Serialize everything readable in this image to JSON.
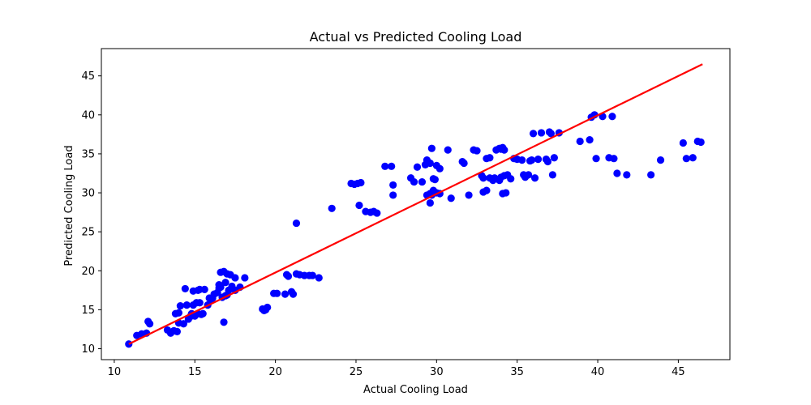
{
  "chart_data": {
    "type": "scatter",
    "title": "Actual vs Predicted Cooling Load",
    "xlabel": "Actual Cooling Load",
    "ylabel": "Predicted Cooling Load",
    "xlim": [
      9.2,
      48.2
    ],
    "ylim": [
      8.6,
      48.5
    ],
    "xticks": [
      10,
      15,
      20,
      25,
      30,
      35,
      40,
      45
    ],
    "yticks": [
      10,
      15,
      20,
      25,
      30,
      35,
      40,
      45
    ],
    "grid": false,
    "series": [
      {
        "type": "scatter",
        "color": "#0000ff",
        "points": [
          [
            10.9,
            10.6
          ],
          [
            11.4,
            11.7
          ],
          [
            11.7,
            11.9
          ],
          [
            12.0,
            12.0
          ],
          [
            12.1,
            13.5
          ],
          [
            12.2,
            13.2
          ],
          [
            13.3,
            12.4
          ],
          [
            13.5,
            12.0
          ],
          [
            13.7,
            12.3
          ],
          [
            13.9,
            12.2
          ],
          [
            13.8,
            14.5
          ],
          [
            14.0,
            14.6
          ],
          [
            14.0,
            13.3
          ],
          [
            14.1,
            15.5
          ],
          [
            14.3,
            13.2
          ],
          [
            14.4,
            17.7
          ],
          [
            14.5,
            15.6
          ],
          [
            14.6,
            13.8
          ],
          [
            14.7,
            14.1
          ],
          [
            14.8,
            14.5
          ],
          [
            15.0,
            14.2
          ],
          [
            14.9,
            15.6
          ],
          [
            15.1,
            15.9
          ],
          [
            15.3,
            15.9
          ],
          [
            15.2,
            14.5
          ],
          [
            15.4,
            14.4
          ],
          [
            15.5,
            14.5
          ],
          [
            14.9,
            17.4
          ],
          [
            15.2,
            17.5
          ],
          [
            15.3,
            17.6
          ],
          [
            15.6,
            17.6
          ],
          [
            15.8,
            15.6
          ],
          [
            15.9,
            16.5
          ],
          [
            16.0,
            16.2
          ],
          [
            16.1,
            16.5
          ],
          [
            16.2,
            17.0
          ],
          [
            16.4,
            17.2
          ],
          [
            16.5,
            17.8
          ],
          [
            16.5,
            18.2
          ],
          [
            16.6,
            17.9
          ],
          [
            16.7,
            16.6
          ],
          [
            16.9,
            16.8
          ],
          [
            17.0,
            16.9
          ],
          [
            17.1,
            17.5
          ],
          [
            17.3,
            18.0
          ],
          [
            17.5,
            17.5
          ],
          [
            17.8,
            17.9
          ],
          [
            16.6,
            19.8
          ],
          [
            16.8,
            19.9
          ],
          [
            17.0,
            19.6
          ],
          [
            17.2,
            19.5
          ],
          [
            17.5,
            19.1
          ],
          [
            18.1,
            19.1
          ],
          [
            16.8,
            13.4
          ],
          [
            16.9,
            18.5
          ],
          [
            19.2,
            15.1
          ],
          [
            19.3,
            14.9
          ],
          [
            19.4,
            15.0
          ],
          [
            19.5,
            15.3
          ],
          [
            19.9,
            17.1
          ],
          [
            20.1,
            17.1
          ],
          [
            20.6,
            17.0
          ],
          [
            20.7,
            19.5
          ],
          [
            20.8,
            19.3
          ],
          [
            21.0,
            17.3
          ],
          [
            21.1,
            17.0
          ],
          [
            21.3,
            19.6
          ],
          [
            21.5,
            19.5
          ],
          [
            21.8,
            19.4
          ],
          [
            22.1,
            19.4
          ],
          [
            22.3,
            19.4
          ],
          [
            22.7,
            19.1
          ],
          [
            21.3,
            26.1
          ],
          [
            23.5,
            28.0
          ],
          [
            24.7,
            31.2
          ],
          [
            24.9,
            31.1
          ],
          [
            25.1,
            31.2
          ],
          [
            25.3,
            31.3
          ],
          [
            25.2,
            28.4
          ],
          [
            25.6,
            27.6
          ],
          [
            25.9,
            27.5
          ],
          [
            26.1,
            27.6
          ],
          [
            26.3,
            27.4
          ],
          [
            26.8,
            33.4
          ],
          [
            27.2,
            33.4
          ],
          [
            27.3,
            31.0
          ],
          [
            27.3,
            29.7
          ],
          [
            28.4,
            31.9
          ],
          [
            28.6,
            31.4
          ],
          [
            28.8,
            33.3
          ],
          [
            29.1,
            31.4
          ],
          [
            29.3,
            33.6
          ],
          [
            29.4,
            34.2
          ],
          [
            29.6,
            33.8
          ],
          [
            29.4,
            29.7
          ],
          [
            29.6,
            29.9
          ],
          [
            29.7,
            29.7
          ],
          [
            29.8,
            30.3
          ],
          [
            30.0,
            30.0
          ],
          [
            30.2,
            29.9
          ],
          [
            29.6,
            28.7
          ],
          [
            29.8,
            31.8
          ],
          [
            29.9,
            31.7
          ],
          [
            29.7,
            35.7
          ],
          [
            30.0,
            33.5
          ],
          [
            30.2,
            33.1
          ],
          [
            30.7,
            35.5
          ],
          [
            30.9,
            29.3
          ],
          [
            31.6,
            34.0
          ],
          [
            31.7,
            33.8
          ],
          [
            32.0,
            29.7
          ],
          [
            32.3,
            35.5
          ],
          [
            32.5,
            35.4
          ],
          [
            32.8,
            32.2
          ],
          [
            32.9,
            31.9
          ],
          [
            32.9,
            30.1
          ],
          [
            33.1,
            30.3
          ],
          [
            33.1,
            34.4
          ],
          [
            33.3,
            34.5
          ],
          [
            33.3,
            31.9
          ],
          [
            33.5,
            31.6
          ],
          [
            33.6,
            31.9
          ],
          [
            33.7,
            35.5
          ],
          [
            33.9,
            35.7
          ],
          [
            34.0,
            35.6
          ],
          [
            34.1,
            35.8
          ],
          [
            34.2,
            35.5
          ],
          [
            33.9,
            31.6
          ],
          [
            34.0,
            32.0
          ],
          [
            34.2,
            32.2
          ],
          [
            34.4,
            32.3
          ],
          [
            34.1,
            29.9
          ],
          [
            34.3,
            30.0
          ],
          [
            34.6,
            31.8
          ],
          [
            34.8,
            34.4
          ],
          [
            35.0,
            34.3
          ],
          [
            35.3,
            34.2
          ],
          [
            35.4,
            32.3
          ],
          [
            35.5,
            32.0
          ],
          [
            35.7,
            32.3
          ],
          [
            35.8,
            34.1
          ],
          [
            35.9,
            34.2
          ],
          [
            36.0,
            37.6
          ],
          [
            36.1,
            31.9
          ],
          [
            36.3,
            34.3
          ],
          [
            36.5,
            37.7
          ],
          [
            36.8,
            34.3
          ],
          [
            36.9,
            34.0
          ],
          [
            37.0,
            37.8
          ],
          [
            37.1,
            37.6
          ],
          [
            37.2,
            32.3
          ],
          [
            37.3,
            34.5
          ],
          [
            37.6,
            37.7
          ],
          [
            38.9,
            36.6
          ],
          [
            39.5,
            36.8
          ],
          [
            39.6,
            39.7
          ],
          [
            39.8,
            40.0
          ],
          [
            39.9,
            34.4
          ],
          [
            40.3,
            39.8
          ],
          [
            40.7,
            34.5
          ],
          [
            40.9,
            39.8
          ],
          [
            41.0,
            34.4
          ],
          [
            41.2,
            32.5
          ],
          [
            41.8,
            32.3
          ],
          [
            43.3,
            32.3
          ],
          [
            43.9,
            34.2
          ],
          [
            45.3,
            36.4
          ],
          [
            45.5,
            34.4
          ],
          [
            45.9,
            34.5
          ],
          [
            46.2,
            36.6
          ],
          [
            46.4,
            36.5
          ]
        ]
      },
      {
        "type": "line",
        "color": "#ff0000",
        "points": [
          [
            10.9,
            10.6
          ],
          [
            46.5,
            46.5
          ]
        ]
      }
    ]
  }
}
